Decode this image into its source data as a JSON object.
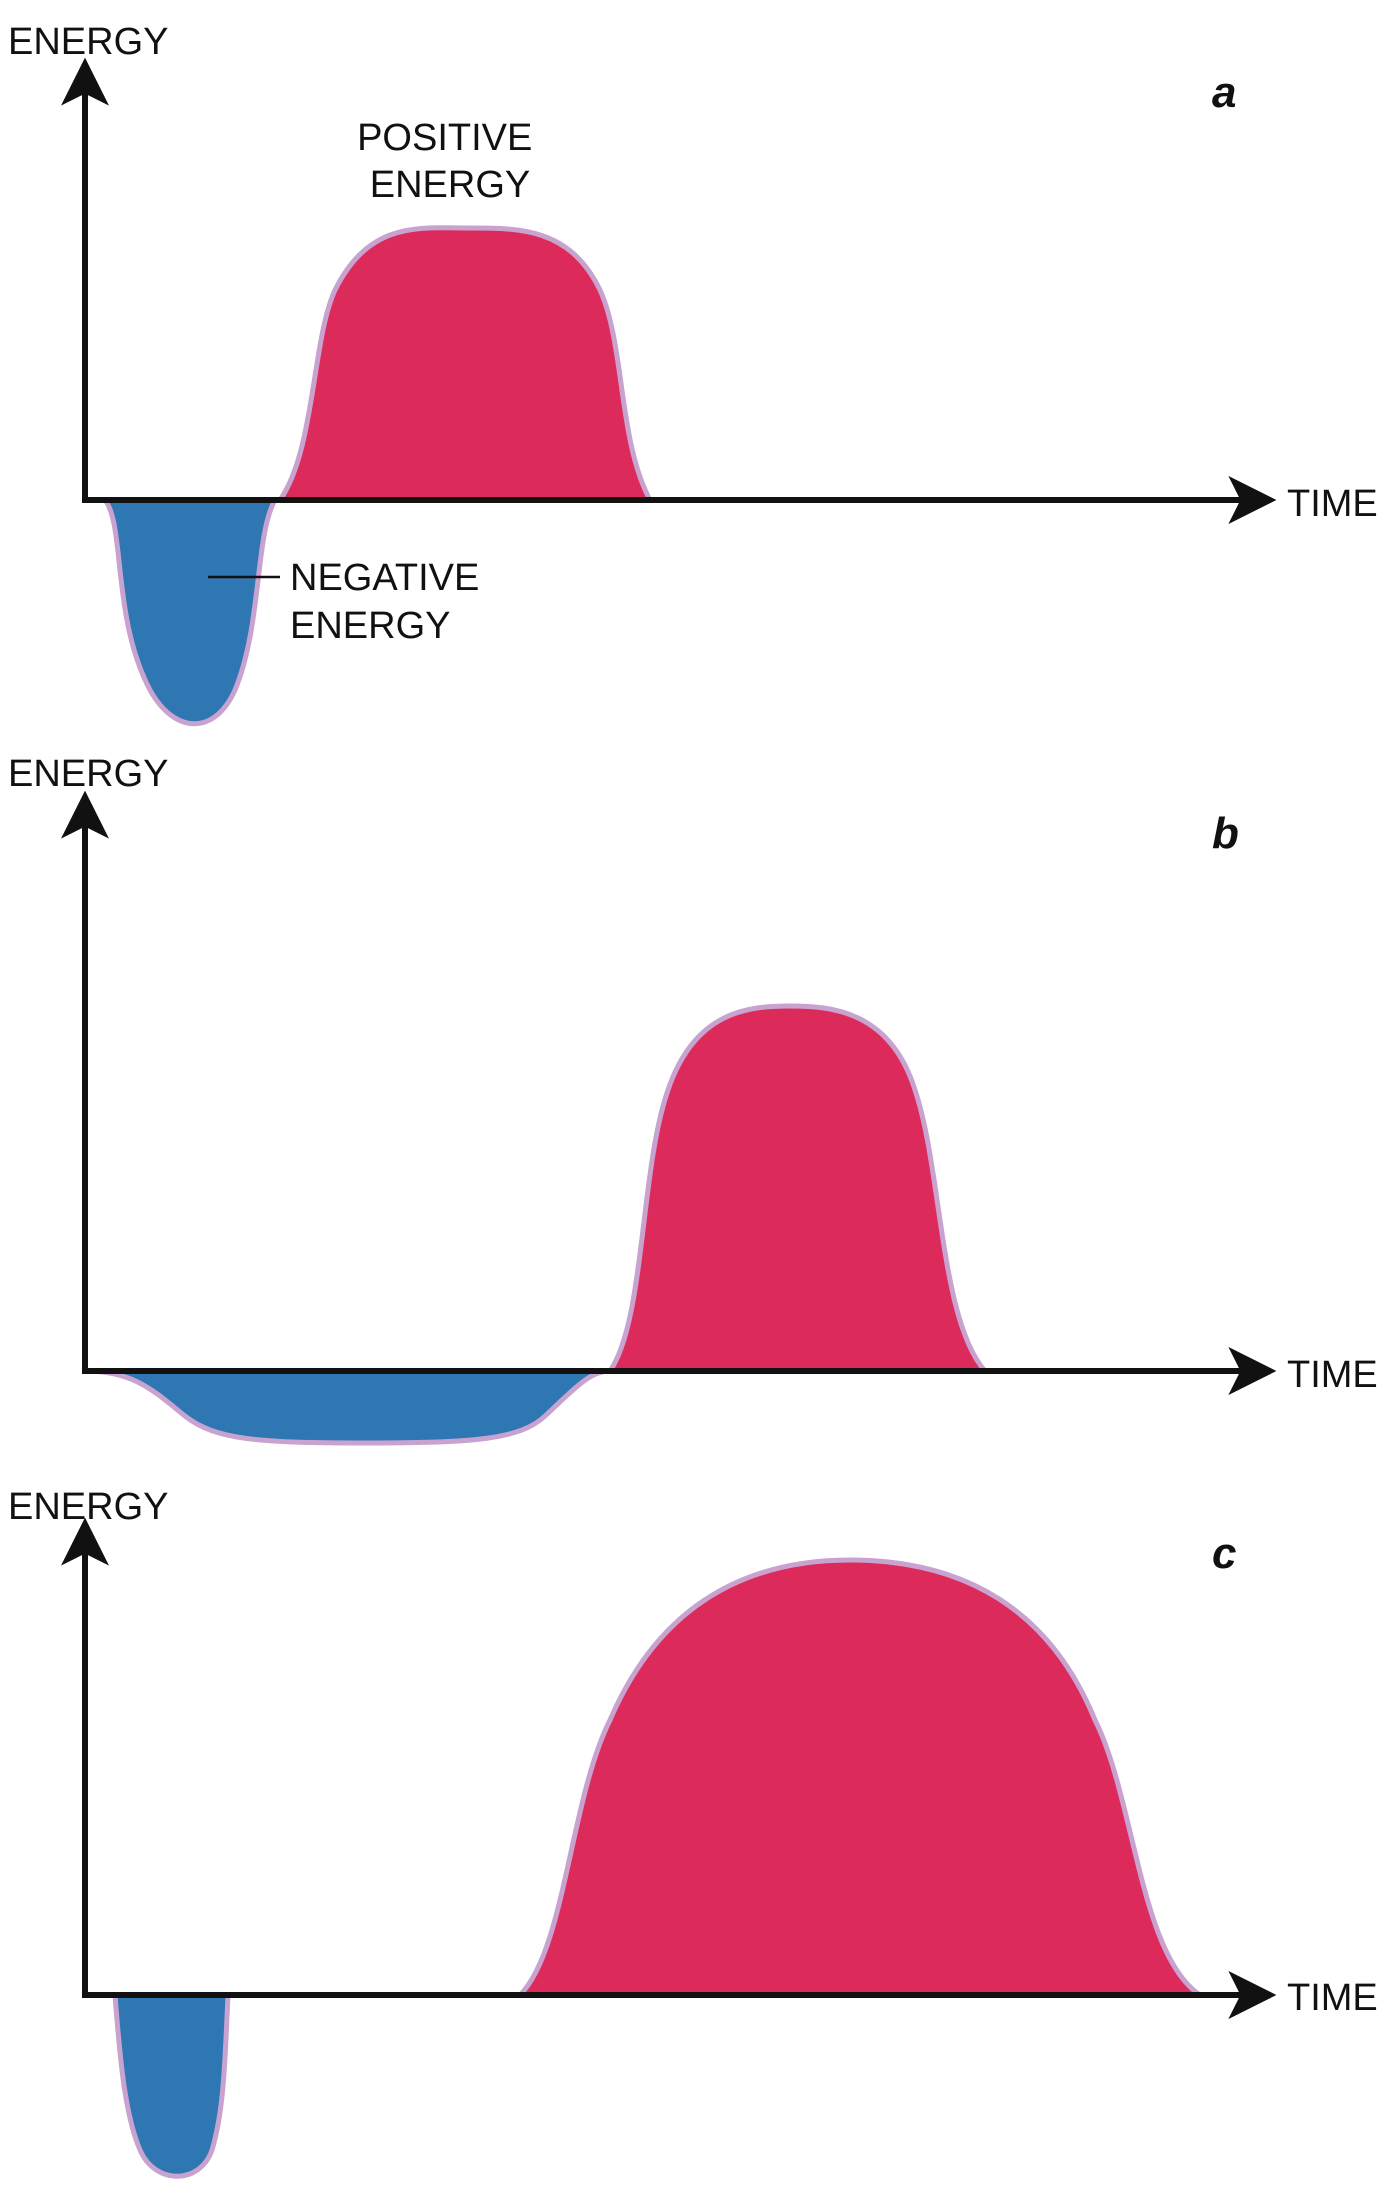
{
  "colors": {
    "positive_fill": "#dc2b5a",
    "negative_fill": "#2e77b3",
    "outline": "#c9a3cf",
    "axis": "#111111"
  },
  "axes": {
    "y_label": "ENERGY",
    "x_label": "TIME"
  },
  "panels": [
    {
      "letter": "a",
      "positive_label": [
        "POSITIVE",
        "ENERGY"
      ],
      "negative_label": [
        "NEGATIVE",
        "ENERGY"
      ]
    },
    {
      "letter": "b"
    },
    {
      "letter": "c"
    }
  ]
}
